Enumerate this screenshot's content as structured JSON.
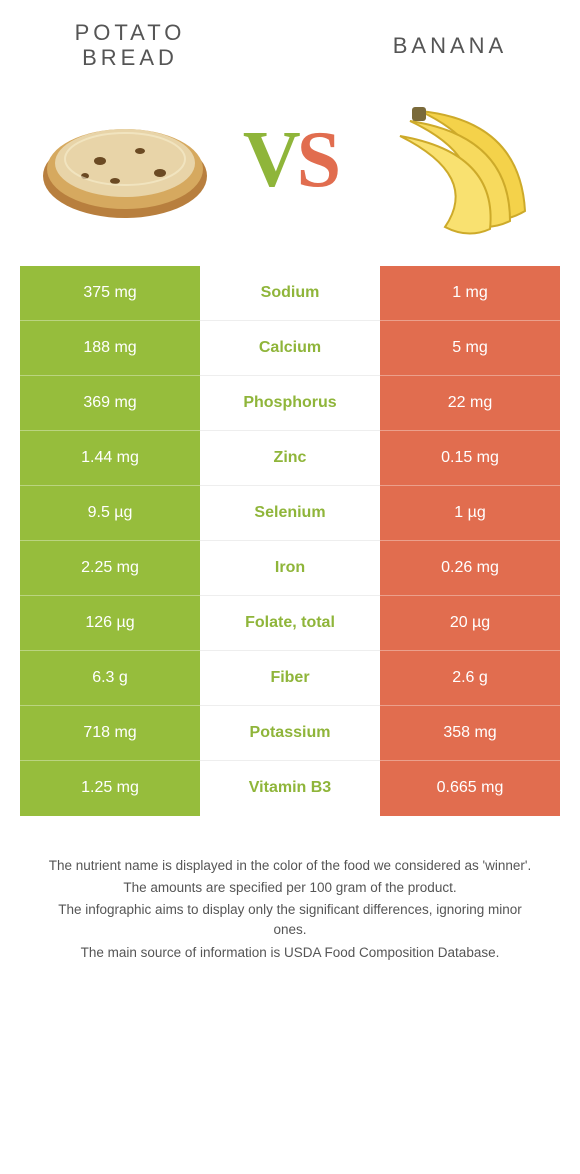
{
  "colors": {
    "left": "#96bd3c",
    "right": "#e16d4f",
    "nutrient_left_text": "#8fb53a",
    "nutrient_right_text": "#e16d4f",
    "title_text": "#555555",
    "footer_text": "#555555",
    "background": "#ffffff"
  },
  "foods": {
    "left": {
      "name": "Potato Bread"
    },
    "right": {
      "name": "Banana"
    }
  },
  "vs": {
    "v": "V",
    "s": "S"
  },
  "rows": [
    {
      "left": "375 mg",
      "label": "Sodium",
      "right": "1 mg",
      "winner": "left"
    },
    {
      "left": "188 mg",
      "label": "Calcium",
      "right": "5 mg",
      "winner": "left"
    },
    {
      "left": "369 mg",
      "label": "Phosphorus",
      "right": "22 mg",
      "winner": "left"
    },
    {
      "left": "1.44 mg",
      "label": "Zinc",
      "right": "0.15 mg",
      "winner": "left"
    },
    {
      "left": "9.5 µg",
      "label": "Selenium",
      "right": "1 µg",
      "winner": "left"
    },
    {
      "left": "2.25 mg",
      "label": "Iron",
      "right": "0.26 mg",
      "winner": "left"
    },
    {
      "left": "126 µg",
      "label": "Folate, total",
      "right": "20 µg",
      "winner": "left"
    },
    {
      "left": "6.3 g",
      "label": "Fiber",
      "right": "2.6 g",
      "winner": "left"
    },
    {
      "left": "718 mg",
      "label": "Potassium",
      "right": "358 mg",
      "winner": "left"
    },
    {
      "left": "1.25 mg",
      "label": "Vitamin B3",
      "right": "0.665 mg",
      "winner": "left"
    }
  ],
  "footer": {
    "line1": "The nutrient name is displayed in the color of the food we considered as 'winner'.",
    "line2": "The amounts are specified per 100 gram of the product.",
    "line3": "The infographic aims to display only the significant differences, ignoring minor ones.",
    "line4": "The main source of information is USDA Food Composition Database."
  }
}
